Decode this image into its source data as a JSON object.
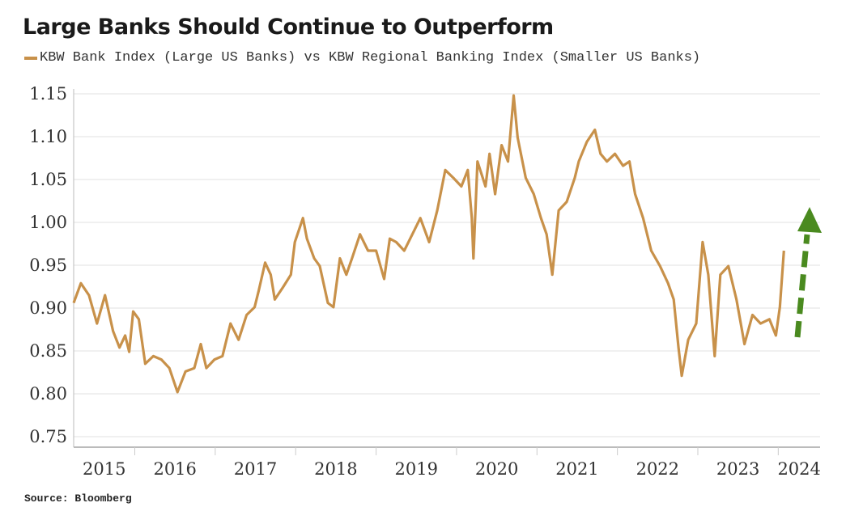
{
  "chart_data": {
    "type": "line",
    "title": "Large Banks Should Continue to Outperform",
    "source": "Source: Bloomberg",
    "series": [
      {
        "name": "KBW Bank Index (Large US Banks) vs KBW Regional Banking Index (Smaller US Banks)",
        "color": "#c8914a",
        "x": [
          2015.24,
          2015.33,
          2015.43,
          2015.53,
          2015.63,
          2015.73,
          2015.81,
          2015.88,
          2015.93,
          2015.98,
          2016.05,
          2016.13,
          2016.23,
          2016.33,
          2016.43,
          2016.53,
          2016.63,
          2016.74,
          2016.82,
          2016.89,
          2016.99,
          2017.09,
          2017.19,
          2017.29,
          2017.39,
          2017.49,
          2017.54,
          2017.62,
          2017.69,
          2017.74,
          2017.84,
          2017.94,
          2017.99,
          2018.09,
          2018.14,
          2018.23,
          2018.3,
          2018.4,
          2018.47,
          2018.55,
          2018.63,
          2018.7,
          2018.8,
          2018.9,
          2019.0,
          2019.1,
          2019.17,
          2019.25,
          2019.35,
          2019.45,
          2019.55,
          2019.66,
          2019.76,
          2019.86,
          2019.96,
          2020.06,
          2020.14,
          2020.19,
          2020.21,
          2020.26,
          2020.36,
          2020.41,
          2020.48,
          2020.56,
          2020.64,
          2020.71,
          2020.76,
          2020.86,
          2020.96,
          2021.05,
          2021.12,
          2021.19,
          2021.27,
          2021.37,
          2021.47,
          2021.52,
          2021.62,
          2021.72,
          2021.79,
          2021.87,
          2021.97,
          2022.07,
          2022.15,
          2022.22,
          2022.32,
          2022.42,
          2022.53,
          2022.63,
          2022.7,
          2022.76,
          2022.8,
          2022.88,
          2022.98,
          2023.06,
          2023.13,
          2023.21,
          2023.28,
          2023.38,
          2023.48,
          2023.58,
          2023.68,
          2023.78,
          2023.89,
          2023.97,
          2024.02,
          2024.07
        ],
        "values": [
          0.906,
          0.929,
          0.915,
          0.882,
          0.915,
          0.873,
          0.854,
          0.868,
          0.849,
          0.896,
          0.887,
          0.835,
          0.844,
          0.84,
          0.83,
          0.802,
          0.826,
          0.83,
          0.858,
          0.83,
          0.84,
          0.844,
          0.882,
          0.863,
          0.892,
          0.901,
          0.92,
          0.953,
          0.939,
          0.91,
          0.924,
          0.939,
          0.977,
          1.005,
          0.981,
          0.958,
          0.949,
          0.906,
          0.901,
          0.958,
          0.939,
          0.958,
          0.986,
          0.967,
          0.967,
          0.934,
          0.981,
          0.977,
          0.967,
          0.986,
          1.005,
          0.977,
          1.014,
          1.061,
          1.052,
          1.042,
          1.061,
          1.005,
          0.958,
          1.071,
          1.042,
          1.08,
          1.033,
          1.09,
          1.071,
          1.148,
          1.099,
          1.052,
          1.033,
          1.005,
          0.986,
          0.939,
          1.014,
          1.024,
          1.052,
          1.071,
          1.094,
          1.108,
          1.08,
          1.071,
          1.08,
          1.066,
          1.071,
          1.033,
          1.005,
          0.967,
          0.949,
          0.929,
          0.91,
          0.854,
          0.821,
          0.863,
          0.882,
          0.977,
          0.939,
          0.844,
          0.939,
          0.949,
          0.91,
          0.858,
          0.892,
          0.882,
          0.887,
          0.868,
          0.901,
          0.967
        ]
      }
    ],
    "xlim": [
      2015.24,
      2024.52
    ],
    "ylim": [
      0.75,
      1.15
    ],
    "yticks": [
      "0.75",
      "0.80",
      "0.85",
      "0.90",
      "0.95",
      "1.00",
      "1.05",
      "1.10",
      "1.15"
    ],
    "xticks": [
      "2015",
      "2016",
      "2017",
      "2018",
      "2019",
      "2020",
      "2021",
      "2022",
      "2023",
      "2024"
    ],
    "grid": "horizontal",
    "legend_placement": "top-left",
    "annotation": {
      "type": "dashed-arrow-up",
      "color": "#4a8a1f"
    }
  }
}
